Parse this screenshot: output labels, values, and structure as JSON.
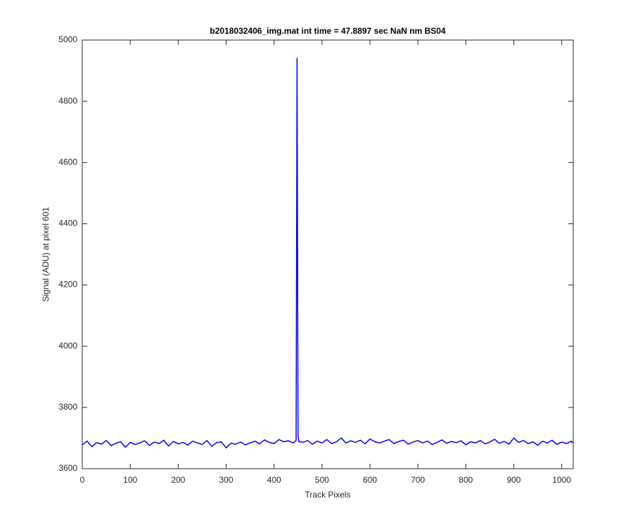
{
  "chart_data": {
    "type": "line",
    "title": "b2018032406_img.mat int time = 47.8897 sec  NaN nm BS04",
    "xlabel": "Track Pixels",
    "ylabel": "Signal (ADU) at pixel 601",
    "color": "#0000ff",
    "xlim": [
      0,
      1024
    ],
    "ylim": [
      3600,
      5000
    ],
    "xticks": [
      0,
      100,
      200,
      300,
      400,
      500,
      600,
      700,
      800,
      900,
      1000
    ],
    "yticks": [
      3600,
      3800,
      4000,
      4200,
      4400,
      4600,
      4800,
      5000
    ],
    "x": [
      0,
      10,
      20,
      30,
      40,
      50,
      60,
      70,
      80,
      90,
      100,
      110,
      120,
      130,
      140,
      150,
      160,
      170,
      180,
      190,
      200,
      210,
      220,
      230,
      240,
      250,
      260,
      270,
      280,
      290,
      300,
      310,
      320,
      330,
      340,
      350,
      360,
      370,
      380,
      390,
      400,
      410,
      420,
      430,
      440,
      446,
      448,
      449,
      450,
      452,
      460,
      470,
      480,
      490,
      500,
      510,
      520,
      530,
      540,
      550,
      560,
      570,
      580,
      590,
      600,
      610,
      620,
      630,
      640,
      650,
      660,
      670,
      680,
      690,
      700,
      710,
      720,
      730,
      740,
      750,
      760,
      770,
      780,
      790,
      800,
      810,
      820,
      830,
      840,
      850,
      860,
      870,
      880,
      890,
      900,
      910,
      920,
      930,
      940,
      950,
      960,
      970,
      980,
      990,
      1000,
      1010,
      1020,
      1023
    ],
    "values": [
      3678,
      3690,
      3672,
      3685,
      3680,
      3692,
      3675,
      3683,
      3688,
      3670,
      3686,
      3679,
      3684,
      3691,
      3676,
      3687,
      3682,
      3693,
      3674,
      3689,
      3681,
      3686,
      3677,
      3690,
      3684,
      3679,
      3692,
      3673,
      3685,
      3688,
      3668,
      3683,
      3680,
      3687,
      3678,
      3684,
      3690,
      3681,
      3694,
      3686,
      3682,
      3695,
      3688,
      3691,
      3684,
      3692,
      4940,
      4300,
      3705,
      3688,
      3686,
      3692,
      3680,
      3690,
      3684,
      3695,
      3682,
      3688,
      3700,
      3684,
      3691,
      3686,
      3693,
      3681,
      3697,
      3688,
      3684,
      3690,
      3695,
      3682,
      3689,
      3693,
      3680,
      3687,
      3692,
      3684,
      3690,
      3679,
      3686,
      3694,
      3683,
      3689,
      3685,
      3691,
      3678,
      3688,
      3684,
      3692,
      3681,
      3687,
      3696,
      3683,
      3689,
      3680,
      3700,
      3686,
      3692,
      3682,
      3688,
      3676,
      3690,
      3684,
      3693,
      3679,
      3687,
      3682,
      3690,
      3684
    ]
  }
}
